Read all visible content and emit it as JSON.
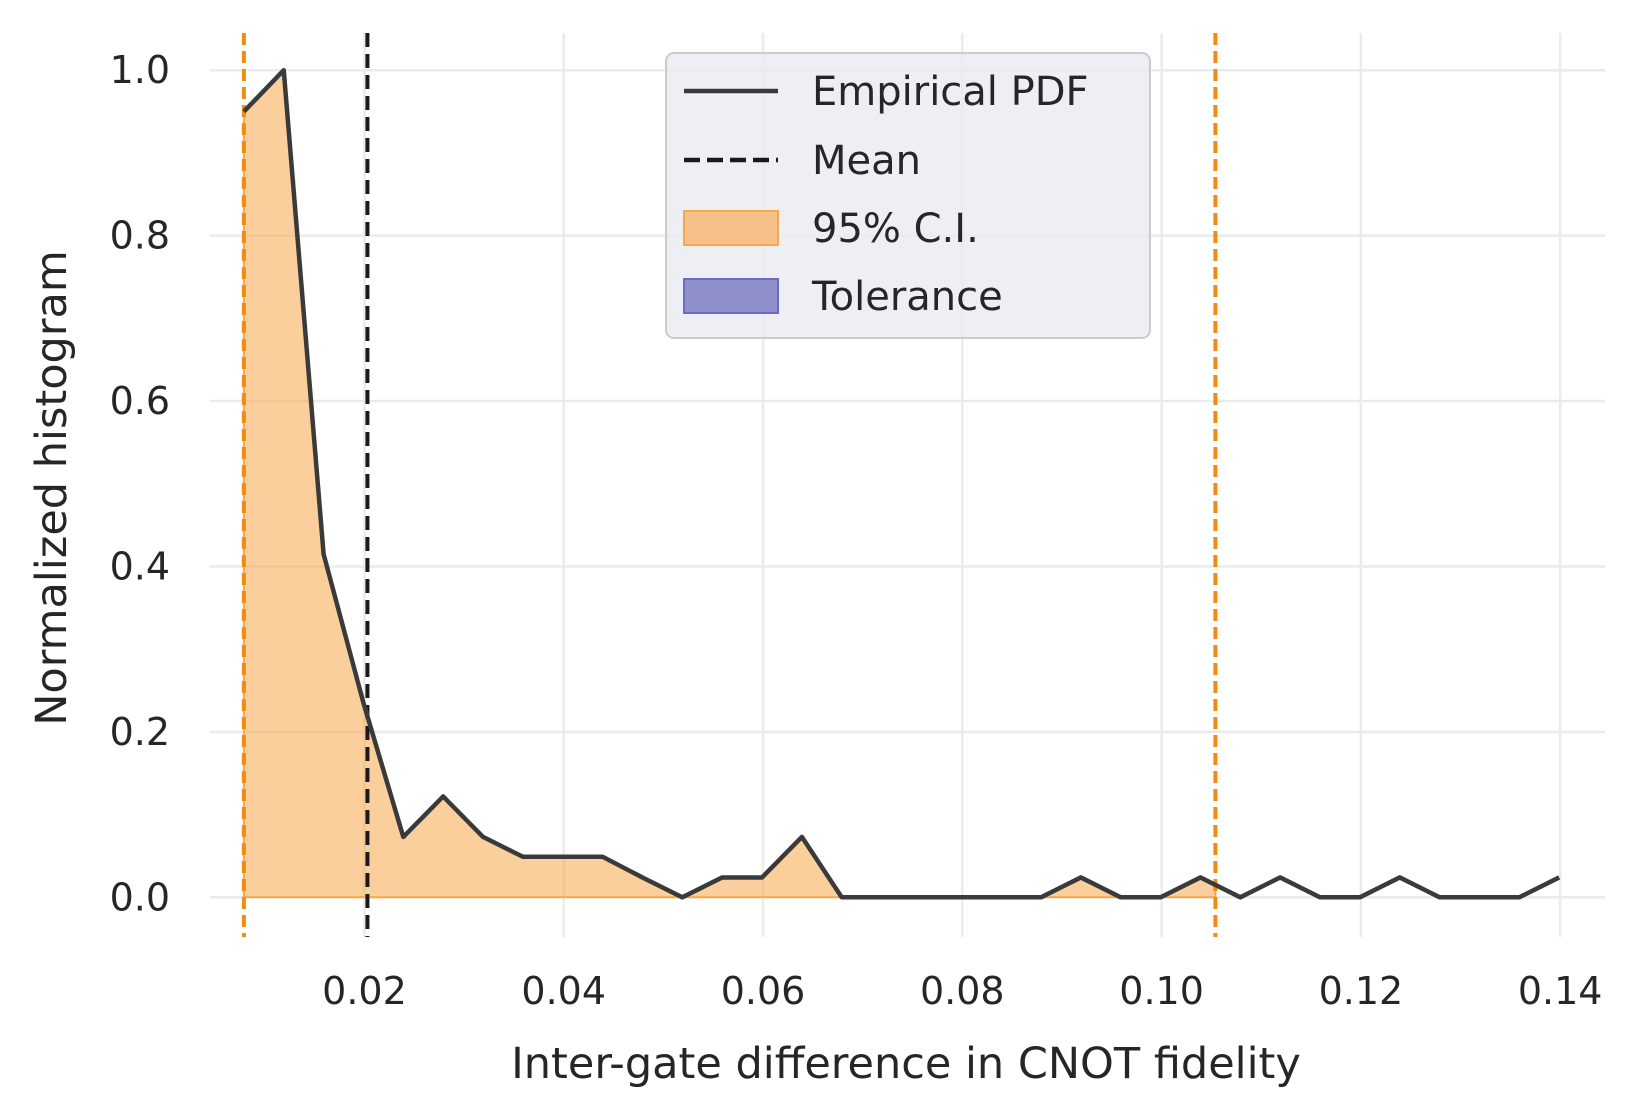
{
  "chart_data": {
    "type": "area",
    "xlabel": "Inter-gate difference in CNOT fidelity",
    "ylabel": "Normalized histogram",
    "xlim": [
      0.0045,
      0.1445
    ],
    "ylim": [
      -0.048,
      1.045
    ],
    "xticks": [
      "0.02",
      "0.04",
      "0.06",
      "0.08",
      "0.10",
      "0.12",
      "0.14"
    ],
    "yticks": [
      "0.0",
      "0.2",
      "0.4",
      "0.6",
      "0.8",
      "1.0"
    ],
    "grid": true,
    "legend_position": "top-center",
    "series": [
      {
        "name": "Empirical PDF",
        "style": "solid",
        "color": "#3a3a3a",
        "x": [
          0.0079,
          0.0119,
          0.0159,
          0.0199,
          0.0239,
          0.0279,
          0.0319,
          0.0359,
          0.0399,
          0.0439,
          0.0479,
          0.0519,
          0.0559,
          0.0599,
          0.0639,
          0.0679,
          0.0719,
          0.0759,
          0.0799,
          0.0839,
          0.0879,
          0.0919,
          0.0959,
          0.0999,
          0.1039,
          0.1079,
          0.1119,
          0.1159,
          0.1199,
          0.1239,
          0.1279,
          0.1319,
          0.1359,
          0.1399
        ],
        "y": [
          0.95,
          1.0,
          0.415,
          0.235,
          0.073,
          0.122,
          0.073,
          0.049,
          0.049,
          0.049,
          0.024,
          0.0,
          0.024,
          0.024,
          0.073,
          0.0,
          0.0,
          0.0,
          0.0,
          0.0,
          0.0,
          0.024,
          0.0,
          0.0,
          0.024,
          0.0,
          0.024,
          0.0,
          0.0,
          0.024,
          0.0,
          0.0,
          0.0,
          0.024
        ]
      }
    ],
    "mean": {
      "name": "Mean",
      "x": 0.0203,
      "color": "#1a1a1a"
    },
    "ci": {
      "name": "95% C.I.",
      "low": 0.0079,
      "high": 0.1054,
      "color": "#f7a84a",
      "line_color": "#f28c0f"
    },
    "tolerance": {
      "name": "Tolerance",
      "color": "#8f8fcc"
    },
    "legend": [
      "Empirical PDF",
      "Mean",
      "95% C.I.",
      "Tolerance"
    ]
  }
}
